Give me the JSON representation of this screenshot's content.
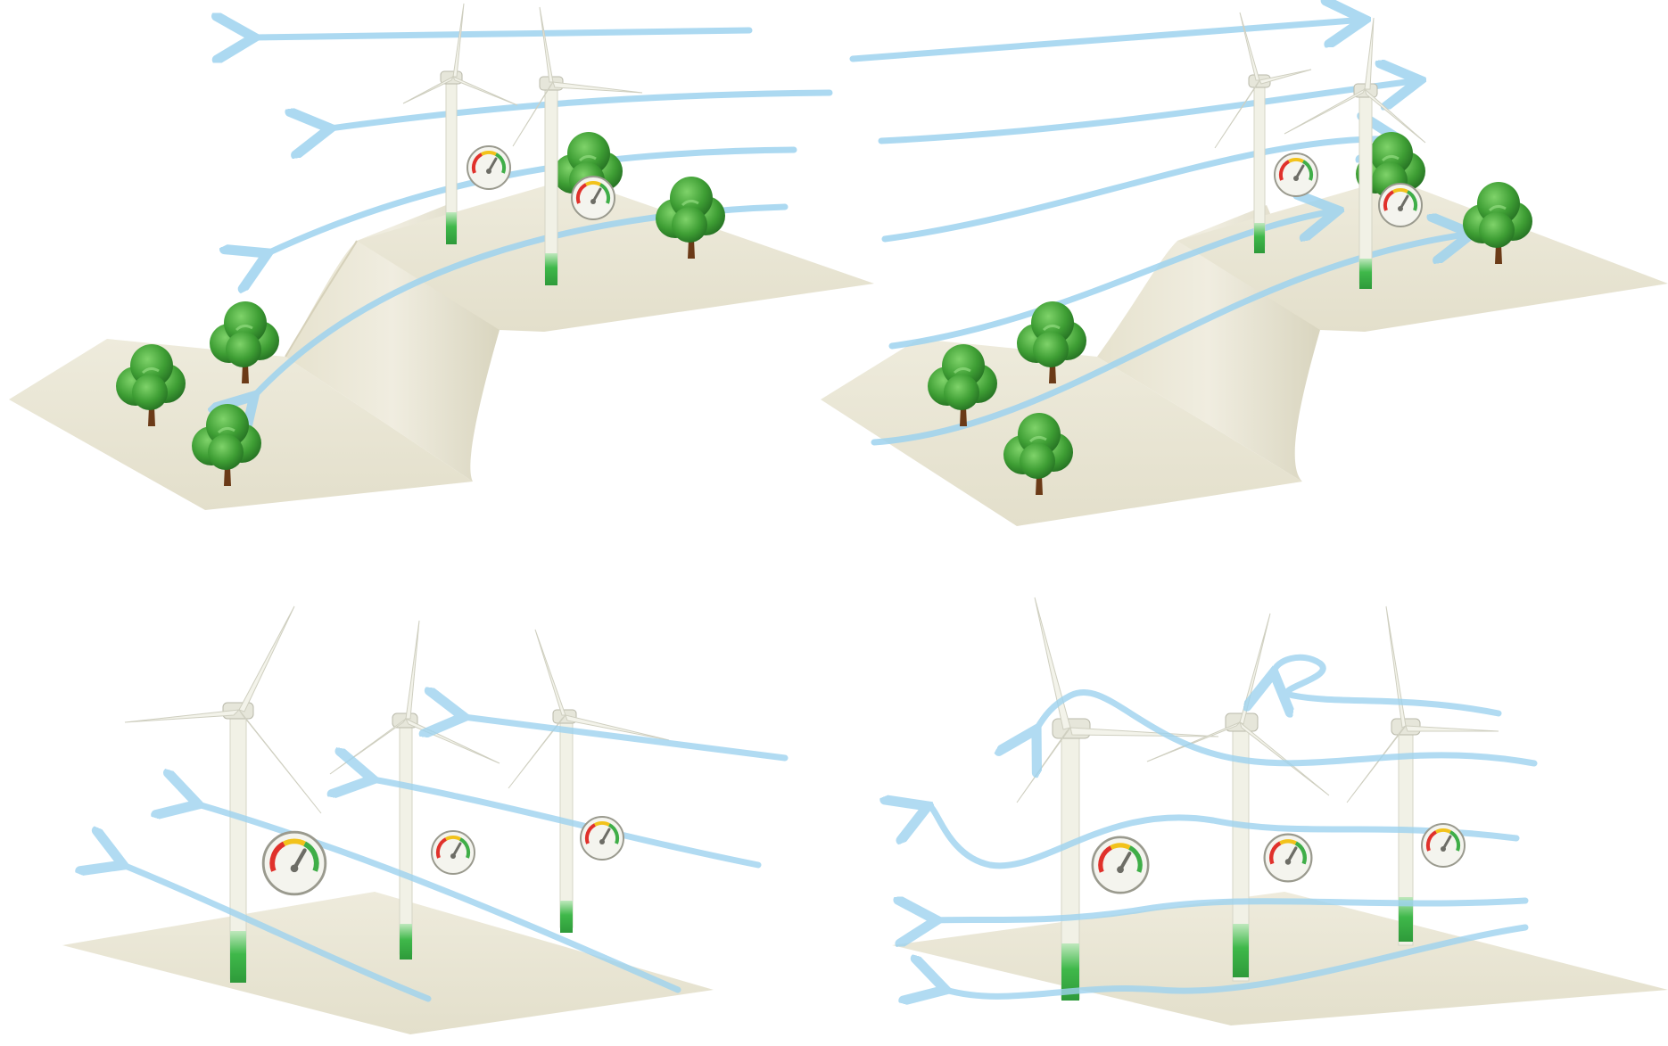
{
  "colors": {
    "ground": "#eae7d6",
    "ground_shade": "#dcd8c3",
    "wind_arrow": "#9ed3ef",
    "tree_dark": "#2f8a2c",
    "tree_light": "#5cc04c",
    "trunk": "#6b3a17",
    "turbine": "#f1f1e6",
    "turbine_base": "#3fb84a",
    "gauge_red": "#e0312b",
    "gauge_yellow": "#f2c21b",
    "gauge_green": "#3fae48"
  },
  "panels": [
    {
      "name": "hill-obstruction-reverse-flow",
      "turbines": 2,
      "trees": 5,
      "terrain": "ridge"
    },
    {
      "name": "hill-smooth-flow",
      "turbines": 2,
      "trees": 5,
      "terrain": "ridge"
    },
    {
      "name": "flat-laminar-flow",
      "turbines": 3,
      "trees": 0,
      "terrain": "flat"
    },
    {
      "name": "flat-turbulent-flow",
      "turbines": 3,
      "trees": 0,
      "terrain": "flat"
    }
  ]
}
